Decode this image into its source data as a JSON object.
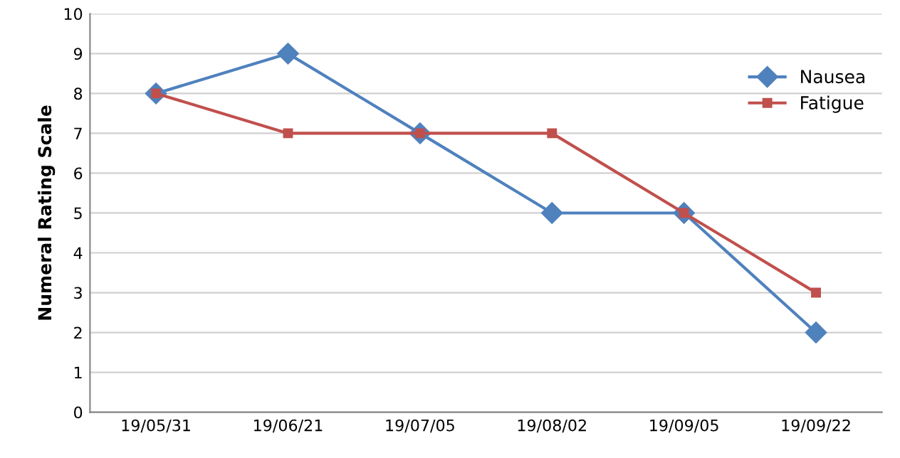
{
  "chart_data": {
    "type": "line",
    "ylabel": "Numeral Rating Scale",
    "categories": [
      "19/05/31",
      "19/06/21",
      "19/07/05",
      "19/08/02",
      "19/09/05",
      "19/09/22"
    ],
    "series": [
      {
        "name": "Nausea",
        "color": "#4f81bd",
        "values": [
          8,
          9,
          7,
          5,
          5,
          2
        ],
        "marker": "diamond"
      },
      {
        "name": "Fatigue",
        "color": "#c0504d",
        "values": [
          8,
          7,
          7,
          7,
          5,
          3
        ],
        "marker": "square"
      }
    ],
    "ylim": [
      0,
      10
    ],
    "yticks": [
      0,
      1,
      2,
      3,
      4,
      5,
      6,
      7,
      8,
      9,
      10
    ],
    "grid": "y",
    "legend": "top right",
    "line_style": "solid"
  }
}
